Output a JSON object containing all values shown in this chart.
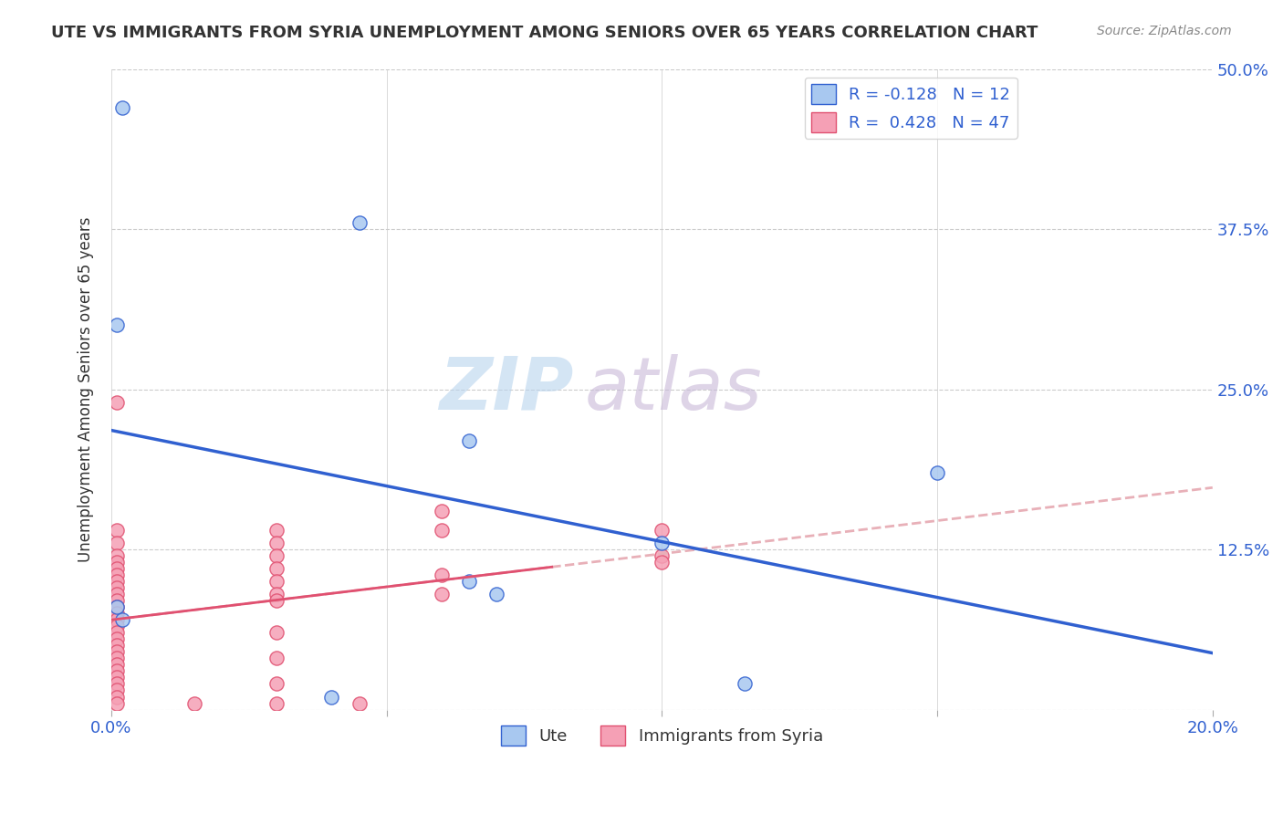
{
  "title": "UTE VS IMMIGRANTS FROM SYRIA UNEMPLOYMENT AMONG SENIORS OVER 65 YEARS CORRELATION CHART",
  "source": "Source: ZipAtlas.com",
  "ylabel": "Unemployment Among Seniors over 65 years",
  "xlabel_blue": "Ute",
  "xlabel_pink": "Immigrants from Syria",
  "xlim": [
    0.0,
    0.2
  ],
  "ylim": [
    0.0,
    0.5
  ],
  "xticks": [
    0.0,
    0.05,
    0.1,
    0.15,
    0.2
  ],
  "yticks": [
    0.0,
    0.125,
    0.25,
    0.375,
    0.5
  ],
  "ytick_labels_right": [
    "",
    "12.5%",
    "25.0%",
    "37.5%",
    "50.0%"
  ],
  "xtick_labels": [
    "0.0%",
    "",
    "",
    "",
    "20.0%"
  ],
  "blue_R": -0.128,
  "blue_N": 12,
  "pink_R": 0.428,
  "pink_N": 47,
  "blue_scatter": [
    [
      0.002,
      0.47
    ],
    [
      0.001,
      0.3
    ],
    [
      0.045,
      0.38
    ],
    [
      0.065,
      0.21
    ],
    [
      0.1,
      0.13
    ],
    [
      0.065,
      0.1
    ],
    [
      0.07,
      0.09
    ],
    [
      0.001,
      0.08
    ],
    [
      0.002,
      0.07
    ],
    [
      0.15,
      0.185
    ],
    [
      0.115,
      0.02
    ],
    [
      0.04,
      0.01
    ]
  ],
  "pink_scatter": [
    [
      0.001,
      0.24
    ],
    [
      0.001,
      0.14
    ],
    [
      0.001,
      0.13
    ],
    [
      0.001,
      0.12
    ],
    [
      0.001,
      0.115
    ],
    [
      0.001,
      0.11
    ],
    [
      0.001,
      0.105
    ],
    [
      0.001,
      0.1
    ],
    [
      0.001,
      0.095
    ],
    [
      0.001,
      0.09
    ],
    [
      0.001,
      0.085
    ],
    [
      0.001,
      0.08
    ],
    [
      0.001,
      0.075
    ],
    [
      0.001,
      0.07
    ],
    [
      0.001,
      0.065
    ],
    [
      0.001,
      0.06
    ],
    [
      0.001,
      0.055
    ],
    [
      0.001,
      0.05
    ],
    [
      0.001,
      0.045
    ],
    [
      0.001,
      0.04
    ],
    [
      0.001,
      0.035
    ],
    [
      0.001,
      0.03
    ],
    [
      0.001,
      0.025
    ],
    [
      0.001,
      0.02
    ],
    [
      0.001,
      0.015
    ],
    [
      0.001,
      0.01
    ],
    [
      0.001,
      0.005
    ],
    [
      0.03,
      0.14
    ],
    [
      0.03,
      0.13
    ],
    [
      0.03,
      0.12
    ],
    [
      0.03,
      0.11
    ],
    [
      0.03,
      0.1
    ],
    [
      0.03,
      0.09
    ],
    [
      0.03,
      0.085
    ],
    [
      0.03,
      0.06
    ],
    [
      0.03,
      0.04
    ],
    [
      0.03,
      0.02
    ],
    [
      0.03,
      0.005
    ],
    [
      0.06,
      0.155
    ],
    [
      0.06,
      0.14
    ],
    [
      0.06,
      0.105
    ],
    [
      0.06,
      0.09
    ],
    [
      0.1,
      0.14
    ],
    [
      0.1,
      0.12
    ],
    [
      0.1,
      0.115
    ],
    [
      0.015,
      0.005
    ],
    [
      0.045,
      0.005
    ]
  ],
  "blue_color": "#a8c8f0",
  "pink_color": "#f5a0b5",
  "blue_line_color": "#3060d0",
  "pink_line_color": "#e05070",
  "pink_trend_color": "#e8b0b8",
  "background_color": "#ffffff",
  "grid_color": "#cccccc",
  "watermark_zip": "ZIP",
  "watermark_atlas": "atlas",
  "watermark_color_zip": "#b8d4ee",
  "watermark_color_atlas": "#c8b8d8"
}
